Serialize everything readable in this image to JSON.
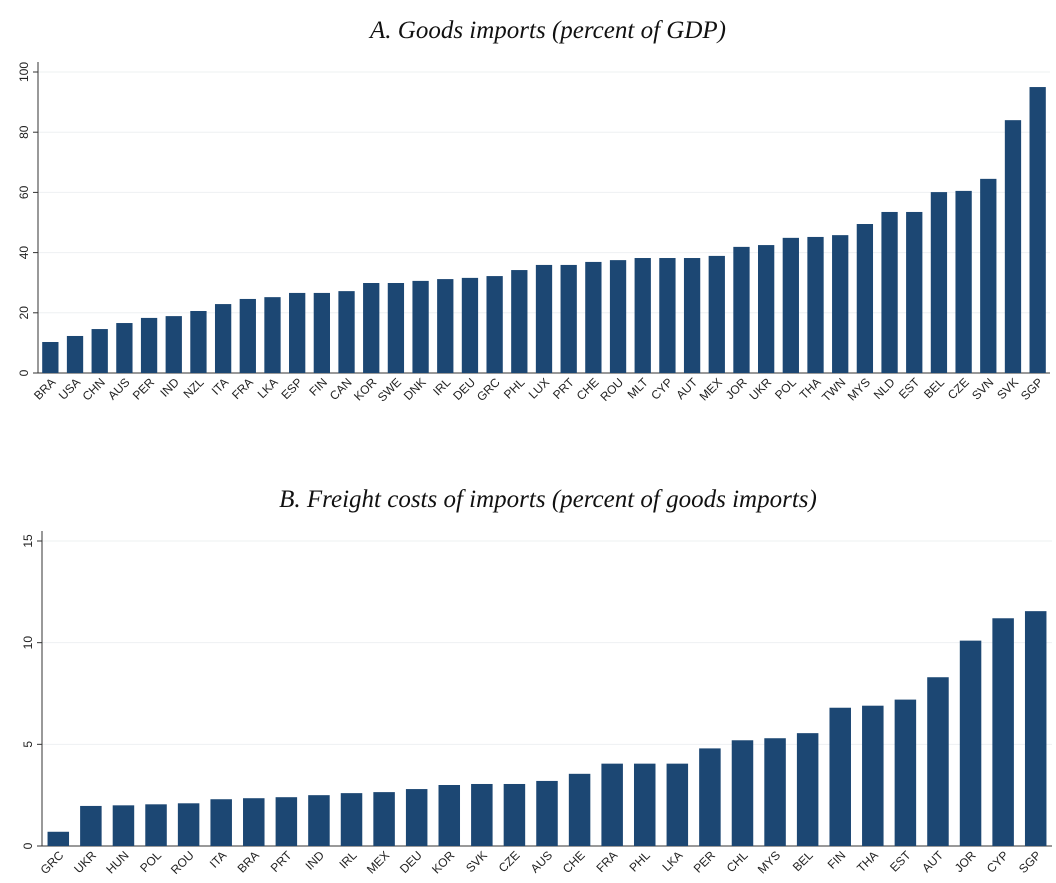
{
  "chart_data": [
    {
      "type": "bar",
      "title": "A.   Goods imports (percent of GDP)",
      "categories": [
        "BRA",
        "USA",
        "CHN",
        "AUS",
        "PER",
        "IND",
        "NZL",
        "ITA",
        "FRA",
        "LKA",
        "ESP",
        "FIN",
        "CAN",
        "KOR",
        "SWE",
        "DNK",
        "IRL",
        "DEU",
        "GRC",
        "PHL",
        "LUX",
        "PRT",
        "CHE",
        "ROU",
        "MLT",
        "CYP",
        "AUT",
        "MEX",
        "JOR",
        "UKR",
        "POL",
        "THA",
        "TWN",
        "MYS",
        "NLD",
        "EST",
        "BEL",
        "CZE",
        "SVN",
        "SVK",
        "SGP"
      ],
      "values": [
        10.3,
        12.3,
        14.6,
        16.6,
        18.3,
        18.9,
        20.6,
        22.9,
        24.6,
        25.2,
        26.6,
        26.6,
        27.2,
        29.9,
        29.9,
        30.6,
        31.2,
        31.6,
        32.2,
        34.2,
        35.9,
        35.9,
        36.9,
        37.5,
        38.2,
        38.2,
        38.2,
        38.9,
        41.9,
        42.5,
        44.9,
        45.2,
        45.8,
        49.5,
        53.5,
        53.5,
        60.1,
        60.5,
        64.5,
        84,
        95
      ],
      "color": "#1c4773",
      "ylim": [
        0,
        100
      ],
      "yticks": [
        0,
        20,
        40,
        60,
        80,
        100
      ],
      "grid": true
    },
    {
      "type": "bar",
      "title": "B.   Freight costs of imports (percent of goods imports)",
      "categories": [
        "GRC",
        "UKR",
        "HUN",
        "POL",
        "ROU",
        "ITA",
        "BRA",
        "PRT",
        "IND",
        "IRL",
        "MEX",
        "DEU",
        "KOR",
        "SVK",
        "CZE",
        "AUS",
        "CHE",
        "FRA",
        "PHL",
        "LKA",
        "PER",
        "CHL",
        "MYS",
        "BEL",
        "FIN",
        "THA",
        "EST",
        "AUT",
        "JOR",
        "CYP",
        "SGP"
      ],
      "values": [
        0.7,
        1.97,
        2.0,
        2.05,
        2.1,
        2.3,
        2.35,
        2.4,
        2.5,
        2.6,
        2.65,
        2.8,
        3.0,
        3.05,
        3.05,
        3.2,
        3.55,
        4.05,
        4.05,
        4.05,
        4.8,
        5.2,
        5.3,
        5.55,
        6.8,
        6.9,
        7.2,
        8.3,
        10.1,
        11.2,
        11.55
      ],
      "color": "#1c4773",
      "ylim": [
        0,
        15
      ],
      "yticks": [
        0,
        5,
        10,
        15
      ],
      "grid": true
    }
  ]
}
